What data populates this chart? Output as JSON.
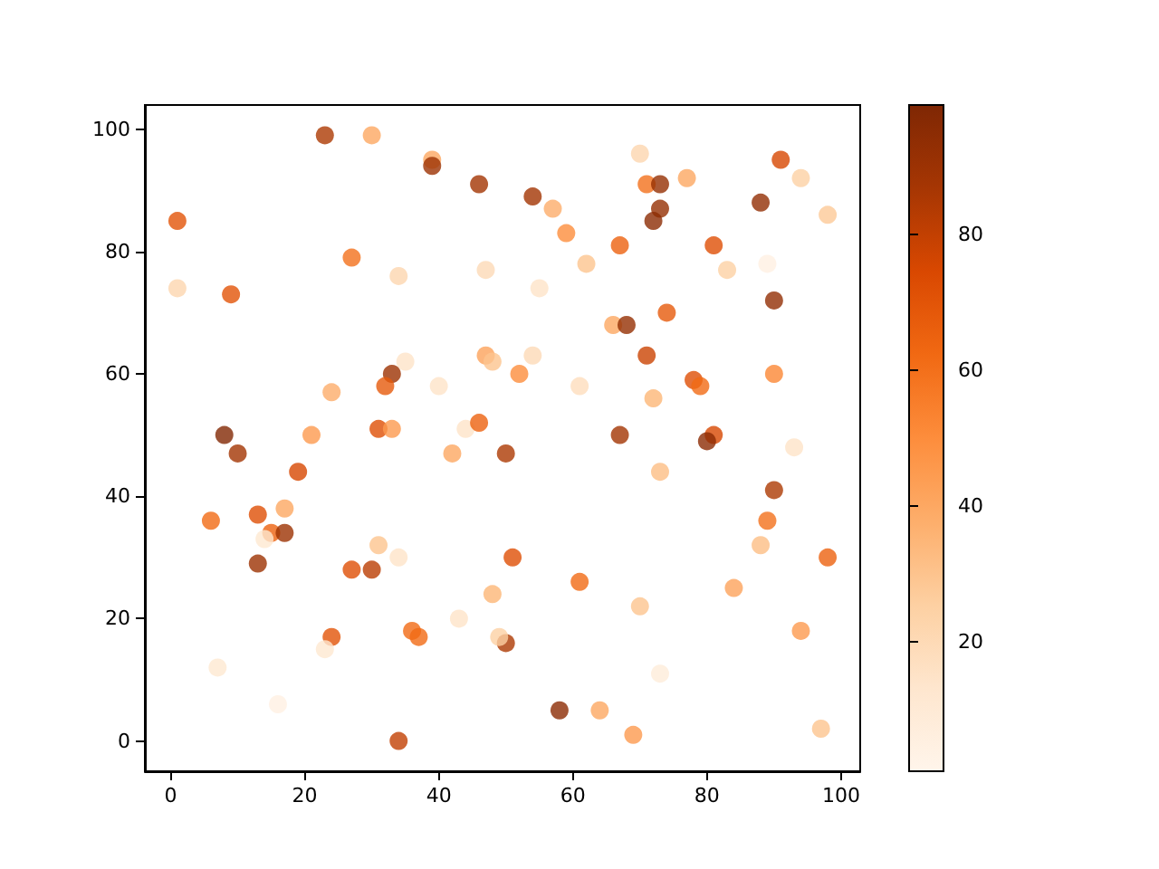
{
  "chart_data": {
    "type": "scatter",
    "marker": "circle",
    "x": [
      1,
      1,
      9,
      23,
      30,
      39,
      39,
      27,
      34,
      46,
      54,
      57,
      59,
      62,
      47,
      55,
      70,
      71,
      73,
      77,
      73,
      72,
      67,
      81,
      83,
      88,
      91,
      94,
      98,
      89,
      90,
      74,
      66,
      68,
      71,
      35,
      33,
      32,
      24,
      40,
      47,
      48,
      54,
      52,
      61,
      72,
      78,
      79,
      67,
      81,
      80,
      90,
      93,
      90,
      89,
      88,
      84,
      98,
      94,
      97,
      73,
      70,
      73,
      69,
      64,
      58,
      61,
      51,
      50,
      49,
      48,
      43,
      36,
      37,
      34,
      24,
      23,
      27,
      30,
      31,
      34,
      16,
      7,
      13,
      15,
      14,
      17,
      17,
      13,
      6,
      19,
      21,
      8,
      10,
      31,
      33,
      42,
      44,
      46,
      50
    ],
    "values": [
      85,
      74,
      73,
      99,
      99,
      95,
      94,
      79,
      76,
      91,
      89,
      87,
      83,
      78,
      77,
      74,
      96,
      91,
      91,
      92,
      87,
      85,
      81,
      81,
      77,
      88,
      95,
      92,
      86,
      78,
      72,
      70,
      68,
      68,
      63,
      62,
      60,
      58,
      57,
      58,
      63,
      62,
      63,
      60,
      58,
      56,
      59,
      58,
      50,
      50,
      49,
      60,
      48,
      41,
      36,
      32,
      25,
      30,
      18,
      2,
      44,
      22,
      11,
      1,
      5,
      5,
      26,
      30,
      16,
      17,
      24,
      20,
      18,
      17,
      0,
      17,
      15,
      28,
      28,
      32,
      30,
      6,
      12,
      37,
      34,
      33,
      34,
      38,
      29,
      36,
      44,
      50,
      50,
      47,
      51,
      51,
      47,
      51,
      52,
      47
    ],
    "cvalues": [
      70,
      22,
      70,
      85,
      40,
      40,
      90,
      60,
      22,
      88,
      88,
      38,
      50,
      30,
      20,
      15,
      22,
      60,
      92,
      40,
      92,
      95,
      65,
      72,
      25,
      93,
      75,
      25,
      28,
      5,
      93,
      68,
      40,
      92,
      78,
      15,
      90,
      68,
      38,
      15,
      42,
      30,
      20,
      50,
      18,
      35,
      72,
      62,
      88,
      75,
      95,
      52,
      15,
      85,
      60,
      32,
      42,
      65,
      45,
      30,
      32,
      30,
      8,
      45,
      40,
      95,
      62,
      72,
      85,
      25,
      35,
      15,
      62,
      62,
      80,
      70,
      12,
      72,
      82,
      30,
      15,
      5,
      12,
      72,
      65,
      12,
      90,
      40,
      90,
      62,
      75,
      45,
      98,
      88,
      72,
      45,
      40,
      15,
      65,
      85
    ],
    "xlim": [
      -3.85,
      102.85
    ],
    "ylim": [
      -4.95,
      103.95
    ],
    "xticks": [
      0,
      20,
      40,
      60,
      80,
      100
    ],
    "yticks": [
      0,
      20,
      40,
      60,
      80,
      100
    ],
    "clim": [
      1,
      99
    ],
    "cticks": [
      20,
      40,
      60,
      80
    ]
  }
}
